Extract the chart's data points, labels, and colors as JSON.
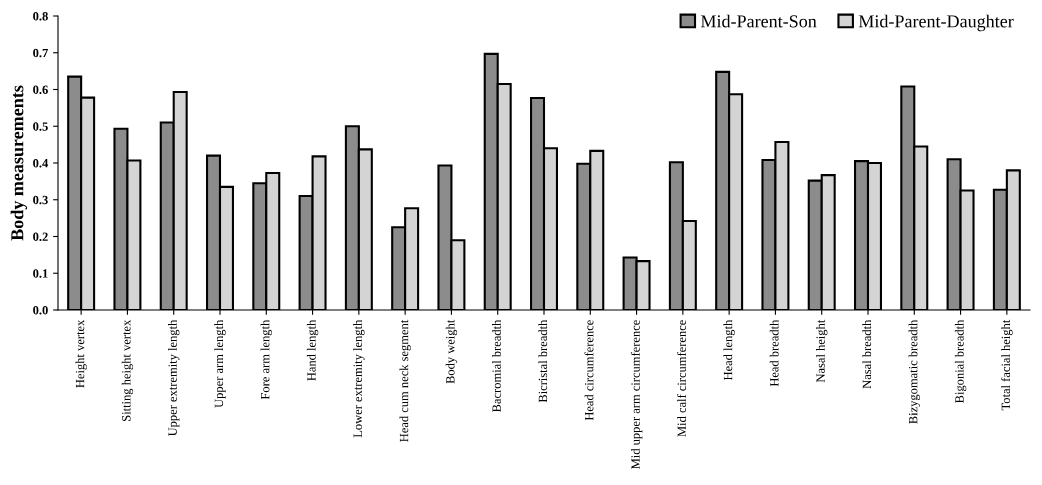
{
  "chart_data": {
    "type": "bar",
    "ylabel": "Body measurements",
    "categories": [
      "Height vertex",
      "Sitting height vertex",
      "Upper extremity length",
      "Upper arm length",
      "Fore arm length",
      "Hand length",
      "Lower extremity length",
      "Head cum neck segment",
      "Body weight",
      "Bacromial breadth",
      "Bicristal breadth",
      "Head circumference",
      "Mid upper arm circumference",
      "Mid calf circumference",
      "Head length",
      "Head breadth",
      "Nasal height",
      "Nasal breadth",
      "Bizygomatic breadth",
      "Bigonial breadth",
      "Total facial height"
    ],
    "series": [
      {
        "name": "Mid-Parent-Son",
        "color": "#8c8c8c",
        "values": [
          0.635,
          0.493,
          0.51,
          0.42,
          0.345,
          0.31,
          0.5,
          0.225,
          0.393,
          0.697,
          0.577,
          0.398,
          0.143,
          0.402,
          0.648,
          0.408,
          0.352,
          0.405,
          0.608,
          0.41,
          0.327
        ]
      },
      {
        "name": "Mid-Parent-Daughter",
        "color": "#d4d4d4",
        "values": [
          0.578,
          0.407,
          0.593,
          0.335,
          0.373,
          0.418,
          0.437,
          0.277,
          0.19,
          0.615,
          0.44,
          0.433,
          0.133,
          0.242,
          0.587,
          0.457,
          0.367,
          0.4,
          0.445,
          0.325,
          0.38
        ]
      }
    ],
    "ylim": [
      0,
      0.8
    ],
    "yticks": [
      {
        "value": 0,
        "label": "0.0"
      },
      {
        "value": 0.1,
        "label": "0.1"
      },
      {
        "value": 0.2,
        "label": "0.2"
      },
      {
        "value": 0.3,
        "label": "0.3"
      },
      {
        "value": 0.4,
        "label": "0.4"
      },
      {
        "value": 0.5,
        "label": "0.5"
      },
      {
        "value": 0.6,
        "label": "0.6"
      },
      {
        "value": 0.7,
        "label": "0.7"
      },
      {
        "value": 0.8,
        "label": "0.8"
      }
    ],
    "grid": false,
    "legend": "top right"
  }
}
